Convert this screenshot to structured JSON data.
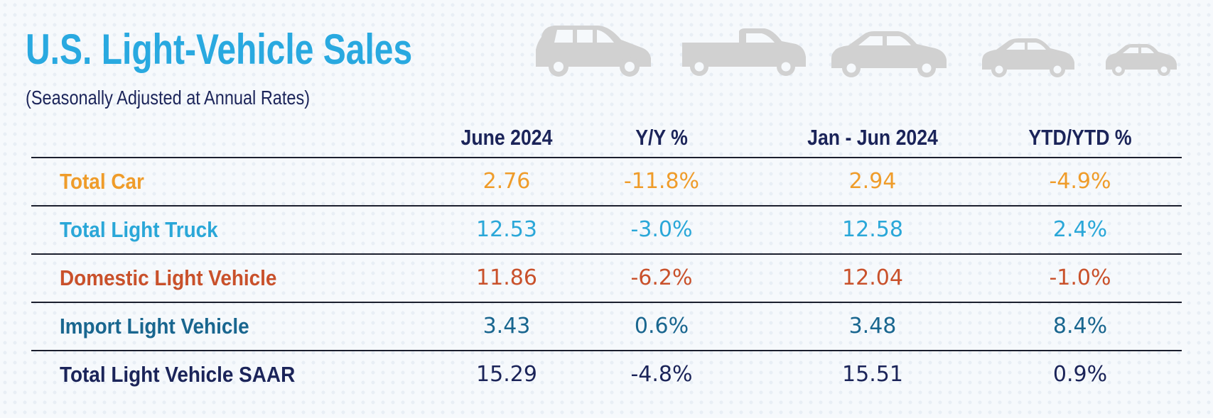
{
  "title": "U.S. Light-Vehicle Sales",
  "subtitle": "(Seasonally Adjusted at Annual Rates)",
  "icons": [
    "minivan-icon",
    "pickup-truck-icon",
    "sedan-icon",
    "compact-car-icon",
    "small-car-icon"
  ],
  "chart_data": {
    "type": "table",
    "columns": [
      "June 2024",
      "Y/Y %",
      "Jan - Jun 2024",
      "YTD/YTD %"
    ],
    "rows": [
      {
        "label": "Total Car",
        "color": "#ef9c2a",
        "values": [
          "2.76",
          "-11.8%",
          "2.94",
          "-4.9%"
        ]
      },
      {
        "label": "Total Light Truck",
        "color": "#2aa7d8",
        "values": [
          "12.53",
          "-3.0%",
          "12.58",
          "2.4%"
        ]
      },
      {
        "label": "Domestic Light Vehicle",
        "color": "#c9512b",
        "values": [
          "11.86",
          "-6.2%",
          "12.04",
          "-1.0%"
        ]
      },
      {
        "label": "Import Light Vehicle",
        "color": "#19668f",
        "values": [
          "3.43",
          "0.6%",
          "3.48",
          "8.4%"
        ]
      },
      {
        "label": "Total Light Vehicle SAAR",
        "color": "#1b2459",
        "values": [
          "15.29",
          "-4.8%",
          "15.51",
          "0.9%"
        ]
      }
    ]
  }
}
